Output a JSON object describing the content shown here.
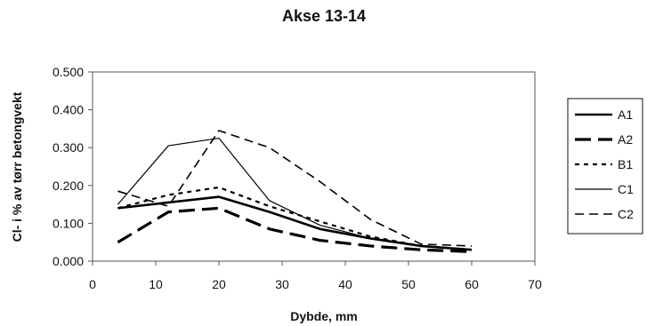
{
  "chart_data": {
    "type": "line",
    "title": "Akse 13-14",
    "xlabel": "Dybde, mm",
    "ylabel": "Cl- i % av tørr betongvekt",
    "xlim": [
      0,
      70
    ],
    "ylim": [
      0,
      0.5
    ],
    "x_ticks": [
      "0",
      "10",
      "20",
      "30",
      "40",
      "50",
      "60",
      "70"
    ],
    "y_ticks": [
      "0.000",
      "0.100",
      "0.200",
      "0.300",
      "0.400",
      "0.500"
    ],
    "grid": false,
    "legend_position": "right",
    "series": [
      {
        "name": "A1",
        "style": "solid-thick",
        "color": "#000000",
        "x": [
          4,
          12,
          20,
          28,
          36,
          44,
          52,
          60
        ],
        "y": [
          0.14,
          0.155,
          0.17,
          0.13,
          0.085,
          0.06,
          0.04,
          0.03
        ]
      },
      {
        "name": "A2",
        "style": "long-dash-thick",
        "color": "#000000",
        "x": [
          4,
          12,
          20,
          28,
          36,
          44,
          52,
          60
        ],
        "y": [
          0.05,
          0.13,
          0.14,
          0.085,
          0.055,
          0.04,
          0.03,
          0.025
        ]
      },
      {
        "name": "B1",
        "style": "short-dash",
        "color": "#000000",
        "x": [
          4,
          12,
          20,
          28,
          36,
          44,
          52,
          60
        ],
        "y": [
          0.14,
          0.175,
          0.195,
          0.145,
          0.105,
          0.065,
          0.04,
          0.03
        ]
      },
      {
        "name": "C1",
        "style": "thin-solid",
        "color": "#000000",
        "x": [
          4,
          12,
          20,
          28,
          36,
          44,
          52,
          60
        ],
        "y": [
          0.15,
          0.305,
          0.325,
          0.16,
          0.095,
          0.06,
          0.04,
          0.03
        ]
      },
      {
        "name": "C2",
        "style": "medium-dash",
        "color": "#000000",
        "x": [
          4,
          12,
          20,
          28,
          36,
          44,
          52,
          60
        ],
        "y": [
          0.185,
          0.145,
          0.345,
          0.3,
          0.21,
          0.11,
          0.045,
          0.04
        ]
      }
    ]
  }
}
